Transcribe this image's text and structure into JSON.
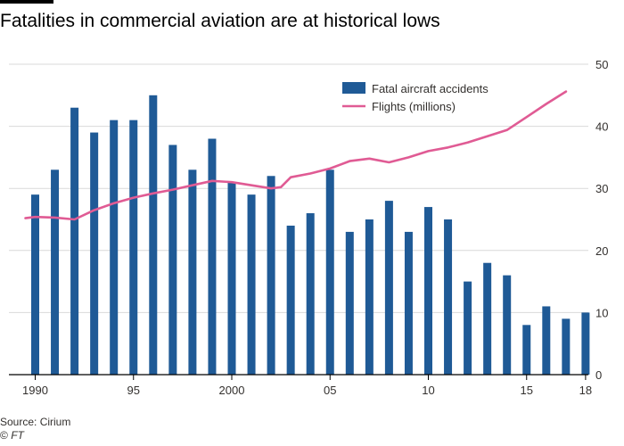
{
  "title": "Fatalities in commercial aviation are at historical lows",
  "source": "Source: Cirium",
  "copyright_symbol": "©",
  "copyright_brand": "FT",
  "colors": {
    "bar": "#1f5a96",
    "line": "#e05b94",
    "grid": "#d9d9d9",
    "axis": "#000000",
    "text": "#33302e"
  },
  "chart_data": {
    "type": "bar",
    "title": "Fatalities in commercial aviation are at historical lows",
    "xlabel": "",
    "ylabel": "",
    "x_ticks": [
      {
        "label": "1990",
        "year": 1990
      },
      {
        "label": "95",
        "year": 1995
      },
      {
        "label": "2000",
        "year": 2000
      },
      {
        "label": "05",
        "year": 2005
      },
      {
        "label": "10",
        "year": 2010
      },
      {
        "label": "15",
        "year": 2015
      },
      {
        "label": "18",
        "year": 2018
      }
    ],
    "y_ticks": [
      "0",
      "10",
      "20",
      "30",
      "40",
      "50"
    ],
    "ylim": [
      0,
      50
    ],
    "y_axis_position": "right",
    "grid": true,
    "legend_position": "top-right",
    "series": [
      {
        "name": "Fatal aircraft accidents",
        "type": "bar",
        "years": [
          1990,
          1991,
          1992,
          1993,
          1994,
          1995,
          1996,
          1997,
          1998,
          1999,
          2000,
          2001,
          2002,
          2003,
          2004,
          2005,
          2006,
          2007,
          2008,
          2009,
          2010,
          2011,
          2012,
          2013,
          2014,
          2015,
          2016,
          2017,
          2018
        ],
        "values": [
          29,
          33,
          43,
          39,
          41,
          41,
          45,
          37,
          33,
          38,
          31,
          29,
          32,
          24,
          26,
          33,
          23,
          25,
          28,
          23,
          27,
          25,
          15,
          18,
          16,
          8,
          11,
          9,
          10
        ]
      },
      {
        "name": "Flights (millions)",
        "type": "line",
        "points": [
          [
            1989.5,
            25.2
          ],
          [
            1990,
            25.4
          ],
          [
            1991,
            25.3
          ],
          [
            1992,
            25.0
          ],
          [
            1993,
            26.5
          ],
          [
            1994,
            27.6
          ],
          [
            1995,
            28.5
          ],
          [
            1996,
            29.2
          ],
          [
            1997,
            29.8
          ],
          [
            1998,
            30.5
          ],
          [
            1999,
            31.2
          ],
          [
            2000,
            31.0
          ],
          [
            2001,
            30.5
          ],
          [
            2002,
            30.0
          ],
          [
            2002.5,
            30.2
          ],
          [
            2003,
            31.8
          ],
          [
            2004,
            32.4
          ],
          [
            2005,
            33.2
          ],
          [
            2006,
            34.4
          ],
          [
            2007,
            34.8
          ],
          [
            2008,
            34.2
          ],
          [
            2009,
            35.0
          ],
          [
            2010,
            36.0
          ],
          [
            2011,
            36.6
          ],
          [
            2012,
            37.4
          ],
          [
            2013,
            38.4
          ],
          [
            2014,
            39.4
          ],
          [
            2015,
            41.5
          ],
          [
            2016,
            43.6
          ],
          [
            2017,
            45.6
          ]
        ]
      }
    ]
  }
}
